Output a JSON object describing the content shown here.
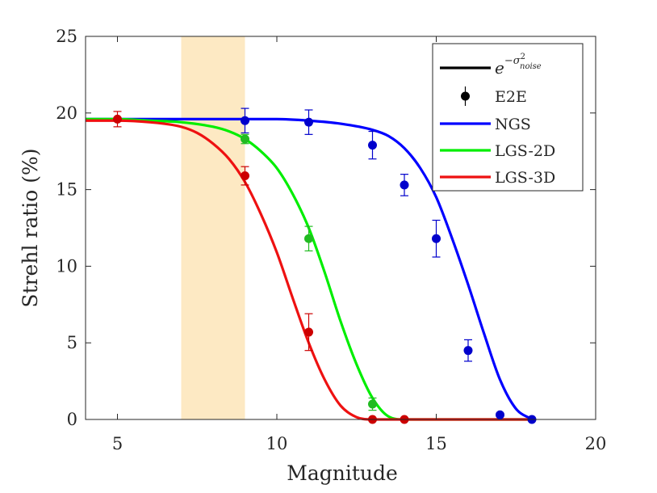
{
  "chart_data": {
    "type": "line",
    "title": "",
    "xlabel": "Magnitude",
    "ylabel": "Strehl ratio (%)",
    "xlim": [
      4,
      20
    ],
    "ylim": [
      0,
      25
    ],
    "xticks": [
      5,
      10,
      15,
      20
    ],
    "yticks": [
      0,
      5,
      10,
      15,
      20,
      25
    ],
    "grid": false,
    "legend_position": "top-right",
    "highlight_band": {
      "x_from": 7,
      "x_to": 9,
      "color": "#fde9c3"
    },
    "legend": [
      {
        "label": "e^{-σ²_noise}",
        "base": "e",
        "exp_main": "−σ",
        "exp_sup": "2",
        "exp_sub": "noise",
        "kind": "line",
        "color": "#000000"
      },
      {
        "label": "E2E",
        "kind": "marker",
        "color": "#000000"
      },
      {
        "label": "NGS",
        "kind": "line",
        "color": "#0000ff"
      },
      {
        "label": "LGS-2D",
        "kind": "line",
        "color": "#00ee00"
      },
      {
        "label": "LGS-3D",
        "kind": "line",
        "color": "#ee1111"
      }
    ],
    "series": [
      {
        "name": "NGS",
        "model_color": "#0000ff",
        "e2e_color": "#0000cc",
        "model_curve": {
          "x": [
            4,
            5,
            6,
            7,
            8,
            9,
            10,
            11,
            12,
            13,
            13.5,
            14,
            14.5,
            15,
            15.5,
            16,
            16.5,
            17,
            17.5,
            18
          ],
          "y": [
            19.6,
            19.6,
            19.6,
            19.6,
            19.6,
            19.6,
            19.6,
            19.5,
            19.3,
            18.9,
            18.5,
            17.7,
            16.4,
            14.5,
            11.8,
            8.8,
            5.6,
            2.6,
            0.7,
            0
          ]
        },
        "e2e": {
          "x": [
            9,
            11,
            13,
            14,
            15,
            16,
            17,
            18
          ],
          "y": [
            19.5,
            19.4,
            17.9,
            15.3,
            11.8,
            4.5,
            0.3,
            0.0
          ],
          "err": [
            0.8,
            0.8,
            0.9,
            0.7,
            1.2,
            0.7,
            0.1,
            0.05
          ]
        }
      },
      {
        "name": "LGS-2D",
        "model_color": "#00ee00",
        "e2e_color": "#22bb22",
        "model_curve": {
          "x": [
            4,
            5,
            6,
            7,
            8,
            8.5,
            9,
            9.5,
            10,
            10.5,
            11,
            11.5,
            12,
            12.5,
            13,
            13.5,
            14,
            15,
            16,
            18
          ],
          "y": [
            19.6,
            19.6,
            19.5,
            19.4,
            19.1,
            18.8,
            18.3,
            17.5,
            16.4,
            14.7,
            12.5,
            9.6,
            6.4,
            3.6,
            1.4,
            0.2,
            0,
            0,
            0,
            0
          ]
        },
        "e2e": {
          "x": [
            9,
            11,
            13
          ],
          "y": [
            18.3,
            11.8,
            1.0
          ],
          "err": [
            0.3,
            0.8,
            0.4
          ]
        }
      },
      {
        "name": "LGS-3D",
        "model_color": "#ee1111",
        "e2e_color": "#cc0000",
        "model_curve": {
          "x": [
            4,
            5,
            6,
            7,
            7.5,
            8,
            8.5,
            9,
            9.5,
            10,
            10.5,
            11,
            11.5,
            12,
            12.5,
            13,
            13.5,
            14,
            16,
            18
          ],
          "y": [
            19.5,
            19.5,
            19.4,
            19.1,
            18.7,
            18.0,
            17.0,
            15.5,
            13.4,
            10.9,
            7.9,
            5.0,
            2.6,
            0.9,
            0.15,
            0,
            0,
            0,
            0,
            0
          ]
        },
        "e2e": {
          "x": [
            5,
            9,
            11,
            13,
            14
          ],
          "y": [
            19.6,
            15.9,
            5.7,
            0.0,
            0.0
          ],
          "err": [
            0.5,
            0.6,
            1.2,
            0.05,
            0.05
          ]
        }
      }
    ]
  }
}
